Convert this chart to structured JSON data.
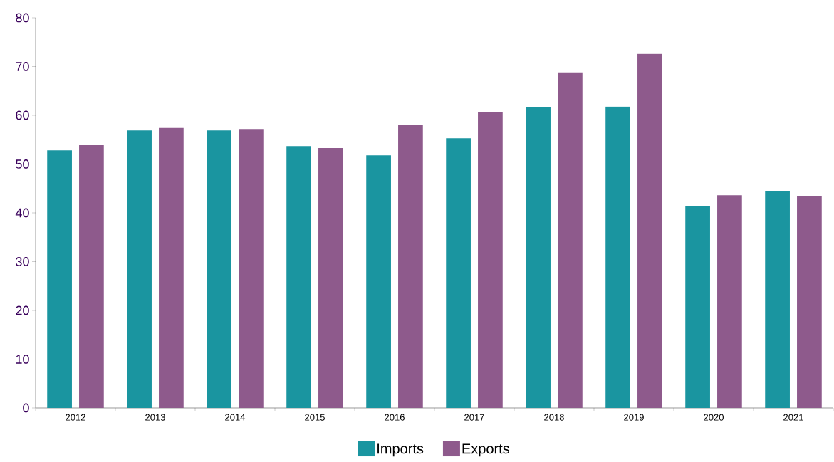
{
  "chart_data": {
    "type": "bar",
    "categories": [
      "2012",
      "2013",
      "2014",
      "2015",
      "2016",
      "2017",
      "2018",
      "2019",
      "2020",
      "2021"
    ],
    "series": [
      {
        "name": "Imports",
        "color": "#1a95a0",
        "values": [
          52.8,
          56.9,
          56.9,
          53.7,
          51.8,
          55.3,
          61.6,
          61.8,
          41.3,
          44.4
        ]
      },
      {
        "name": "Exports",
        "color": "#8e5a8c",
        "values": [
          53.9,
          57.4,
          57.2,
          53.3,
          58.0,
          60.6,
          68.8,
          72.6,
          43.6,
          43.4
        ]
      }
    ],
    "ylim": [
      0,
      80
    ],
    "yticks": [
      0,
      10,
      20,
      30,
      40,
      50,
      60,
      70,
      80
    ],
    "legend": "bottom",
    "grid": false
  }
}
